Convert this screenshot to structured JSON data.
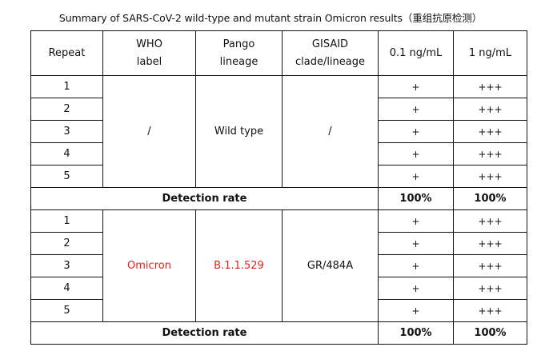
{
  "caption": "Summary of SARS-CoV-2 wild-type and mutant strain Omicron results（重组抗原检测）",
  "headers": {
    "repeat": "Repeat",
    "who_line1": "WHO",
    "who_line2": "label",
    "pango_line1": "Pango",
    "pango_line2": "lineage",
    "gisaid_line1": "GISAID",
    "gisaid_line2": "clade/lineage",
    "conc_low": "0.1 ng/mL",
    "conc_high": "1 ng/mL"
  },
  "groups": [
    {
      "who_label": "/",
      "pango_lineage": "Wild type",
      "gisaid": "/",
      "rows": [
        {
          "repeat": "1",
          "low": "+",
          "high": "+++"
        },
        {
          "repeat": "2",
          "low": "+",
          "high": "+++"
        },
        {
          "repeat": "3",
          "low": "+",
          "high": "+++"
        },
        {
          "repeat": "4",
          "low": "+",
          "high": "+++"
        },
        {
          "repeat": "5",
          "low": "+",
          "high": "+++"
        }
      ],
      "detection_label": "Detection rate",
      "rate_low": "100%",
      "rate_high": "100%",
      "highlight_color": "#111111"
    },
    {
      "who_label": "Omicron",
      "pango_lineage": "B.1.1.529",
      "gisaid": "GR/484A",
      "rows": [
        {
          "repeat": "1",
          "low": "+",
          "high": "+++"
        },
        {
          "repeat": "2",
          "low": "+",
          "high": "+++"
        },
        {
          "repeat": "3",
          "low": "+",
          "high": "+++"
        },
        {
          "repeat": "4",
          "low": "+",
          "high": "+++"
        },
        {
          "repeat": "5",
          "low": "+",
          "high": "+++"
        }
      ],
      "detection_label": "Detection rate",
      "rate_low": "100%",
      "rate_high": "100%",
      "highlight_color": "#e02020"
    }
  ]
}
